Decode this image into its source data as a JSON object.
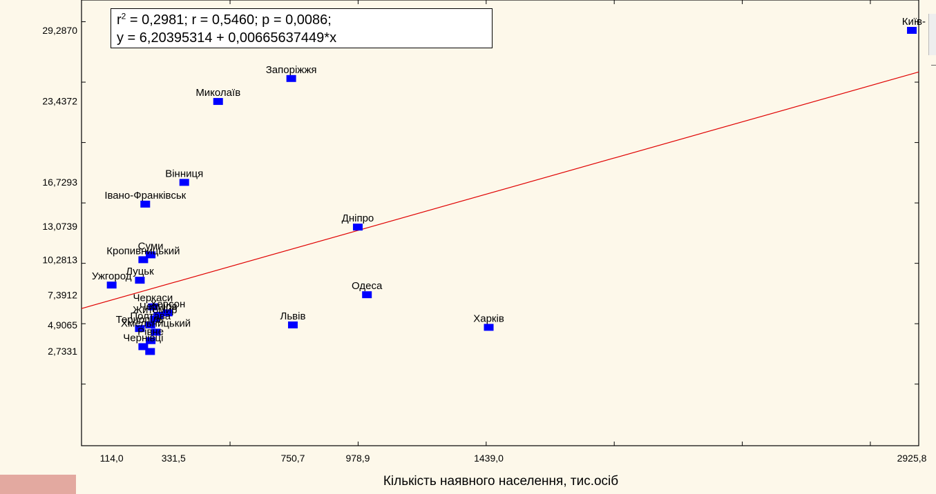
{
  "stats_line1_prefix": "r",
  "stats_line1_exp": "2",
  "stats_line1_rest": " = 0,2981;  r = 0,5460; p = 0,0086;",
  "stats_line2": "y = 6,20395314 + 0,00665637449*x",
  "colors": {
    "background": "#fdf8ea",
    "points": "#0000ff",
    "fit_line": "#e00000",
    "axes": "#000000"
  },
  "chart_data": {
    "type": "scatter",
    "xlabel": "Кількість наявного населення, тис.осіб",
    "ylabel": "",
    "xlim": [
      8,
      2950
    ],
    "ylim": [
      -5.1,
      31.8
    ],
    "x_tick_labels": [
      {
        "v": 114.0,
        "label": "114,0"
      },
      {
        "v": 331.5,
        "label": "331,5"
      },
      {
        "v": 750.7,
        "label": "750,7"
      },
      {
        "v": 978.9,
        "label": "978,9"
      },
      {
        "v": 1439.0,
        "label": "1439,0"
      },
      {
        "v": 2925.8,
        "label": "2925,8"
      }
    ],
    "x_minor_ticks": [
      530,
      980,
      1430,
      1880,
      2330,
      2780
    ],
    "y_tick_labels": [
      {
        "v": 29.287,
        "label": "29,2870"
      },
      {
        "v": 23.4372,
        "label": "23,4372"
      },
      {
        "v": 16.7293,
        "label": "16,7293"
      },
      {
        "v": 13.0739,
        "label": "13,0739"
      },
      {
        "v": 10.2813,
        "label": "10,2813"
      },
      {
        "v": 7.3912,
        "label": "7,3912"
      },
      {
        "v": 4.9065,
        "label": "4,9065"
      },
      {
        "v": 2.7331,
        "label": "2,7331"
      }
    ],
    "y_minor_ticks": [
      0,
      5,
      10,
      15,
      20,
      25,
      30
    ],
    "fit": {
      "intercept": 6.20395314,
      "slope": 0.00665637449
    },
    "points": [
      {
        "name": "Київ",
        "label": "Київ-",
        "x": 2925.8,
        "y": 29.287
      },
      {
        "name": "Запоріжжя",
        "label": "Запоріжжя",
        "x": 745,
        "y": 25.3
      },
      {
        "name": "Миколаїв",
        "label": "Миколаїв",
        "x": 488,
        "y": 23.4
      },
      {
        "name": "Вінниця",
        "label": "Вінниця",
        "x": 369,
        "y": 16.7
      },
      {
        "name": "Івано-Франківськ",
        "label": "Івано-Франківськ",
        "x": 232,
        "y": 14.9
      },
      {
        "name": "Дніпро",
        "label": "Дніпро",
        "x": 978.9,
        "y": 13.0
      },
      {
        "name": "Суми",
        "label": "Суми",
        "x": 251,
        "y": 10.7
      },
      {
        "name": "Кропивницький",
        "label": "Кропивницький",
        "x": 225,
        "y": 10.3
      },
      {
        "name": "Луцьк",
        "label": "Луцьк",
        "x": 213,
        "y": 8.6
      },
      {
        "name": "Ужгород",
        "label": "Ужгород",
        "x": 114,
        "y": 8.2
      },
      {
        "name": "Одеса",
        "label": "Одеса",
        "x": 1011,
        "y": 7.4
      },
      {
        "name": "Черкаси",
        "label": "Черкаси",
        "x": 259,
        "y": 6.4
      },
      {
        "name": "Херсон",
        "label": "Херсон",
        "x": 311,
        "y": 5.9
      },
      {
        "name": "Чернігів",
        "label": "Чернігів",
        "x": 278,
        "y": 5.7
      },
      {
        "name": "Житомир",
        "label": "Житомир",
        "x": 266,
        "y": 5.4
      },
      {
        "name": "Полтава",
        "label": "Полтава",
        "x": 250,
        "y": 4.9
      },
      {
        "name": "Тернопіль",
        "label": "Тернопіль",
        "x": 213,
        "y": 4.6
      },
      {
        "name": "Львів",
        "label": "Львів",
        "x": 750.7,
        "y": 4.9
      },
      {
        "name": "Харків",
        "label": "Харків",
        "x": 1439.0,
        "y": 4.7
      },
      {
        "name": "Хмельницький",
        "label": "Хмельницький",
        "x": 269,
        "y": 4.3
      },
      {
        "name": "Рівне",
        "label": "Рівне",
        "x": 251,
        "y": 3.6
      },
      {
        "name": "Чернівці",
        "label": "Чернівці",
        "x": 225,
        "y": 3.1
      },
      {
        "name": "Чернівці-2",
        "label": "",
        "x": 249,
        "y": 2.7
      }
    ]
  }
}
